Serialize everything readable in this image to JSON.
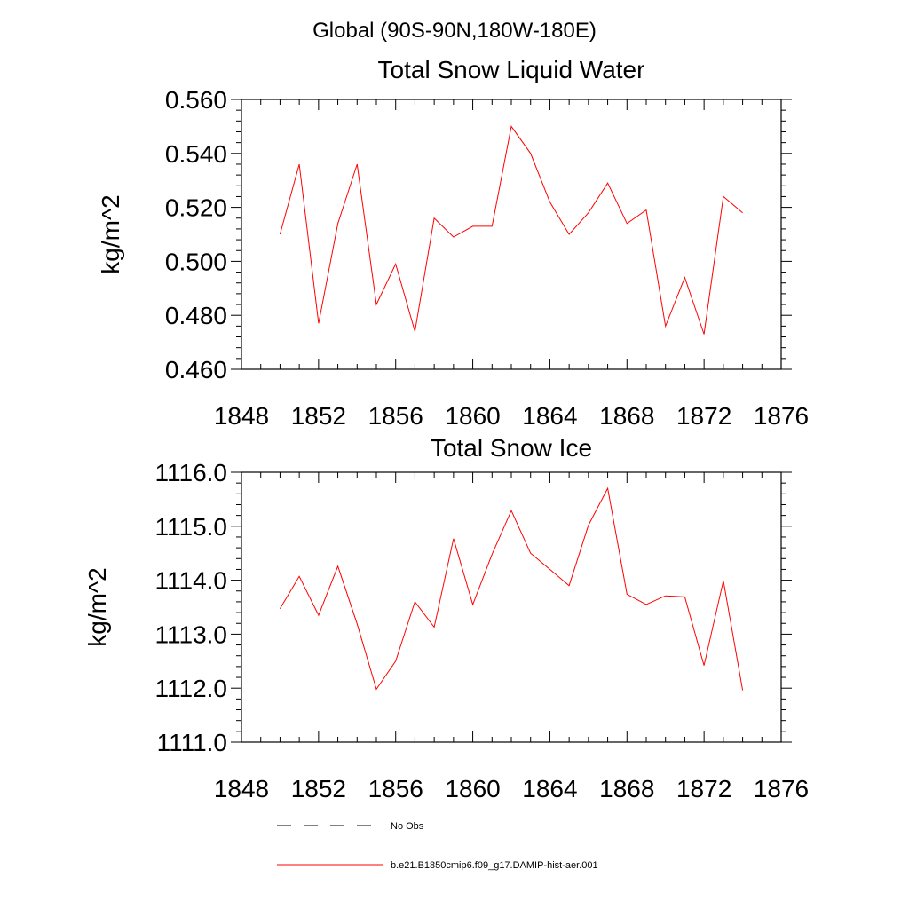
{
  "page_title": "Global (90S-90N,180W-180E)",
  "series_color": "#ff0000",
  "legend": {
    "obs_label": "No Obs",
    "model_label": "b.e21.B1850cmip6.f09_g17.DAMIP-hist-aer.001"
  },
  "chart_data": [
    {
      "type": "line",
      "title": "Total Snow Liquid Water",
      "xlabel": "",
      "ylabel": "kg/m^2",
      "xlim": [
        1848,
        1876
      ],
      "ylim": [
        0.46,
        0.56
      ],
      "x_ticks": [
        "1848",
        "1852",
        "1856",
        "1860",
        "1864",
        "1868",
        "1872",
        "1876"
      ],
      "y_ticks": [
        "0.460",
        "0.480",
        "0.500",
        "0.520",
        "0.540",
        "0.560"
      ],
      "grid": false,
      "series": [
        {
          "x": [
            1850,
            1851,
            1852,
            1853,
            1854,
            1855,
            1856,
            1857,
            1858,
            1859,
            1860,
            1861,
            1862,
            1863,
            1864,
            1865,
            1866,
            1867,
            1868,
            1869,
            1870,
            1871,
            1872,
            1873,
            1874
          ],
          "y": [
            0.51,
            0.536,
            0.477,
            0.514,
            0.536,
            0.484,
            0.499,
            0.474,
            0.516,
            0.509,
            0.513,
            0.513,
            0.55,
            0.54,
            0.522,
            0.51,
            0.518,
            0.529,
            0.514,
            0.519,
            0.476,
            0.494,
            0.473,
            0.524,
            0.518
          ]
        }
      ]
    },
    {
      "type": "line",
      "title": "Total Snow Ice",
      "xlabel": "",
      "ylabel": "kg/m^2",
      "xlim": [
        1848,
        1876
      ],
      "ylim": [
        1111.0,
        1116.0
      ],
      "x_ticks": [
        "1848",
        "1852",
        "1856",
        "1860",
        "1864",
        "1868",
        "1872",
        "1876"
      ],
      "y_ticks": [
        "1111.0",
        "1112.0",
        "1113.0",
        "1114.0",
        "1115.0",
        "1116.0"
      ],
      "grid": false,
      "series": [
        {
          "x": [
            1850,
            1851,
            1852,
            1853,
            1854,
            1855,
            1856,
            1857,
            1858,
            1859,
            1860,
            1861,
            1862,
            1863,
            1864,
            1865,
            1866,
            1867,
            1868,
            1869,
            1870,
            1871,
            1872,
            1873,
            1874
          ],
          "y": [
            1113.47,
            1114.07,
            1113.35,
            1114.26,
            1113.19,
            1111.98,
            1112.5,
            1113.6,
            1113.13,
            1114.77,
            1113.55,
            1114.48,
            1115.29,
            1114.5,
            1114.2,
            1113.9,
            1115.02,
            1115.7,
            1113.74,
            1113.55,
            1113.71,
            1113.69,
            1112.42,
            1113.99,
            1111.96
          ]
        }
      ]
    }
  ]
}
